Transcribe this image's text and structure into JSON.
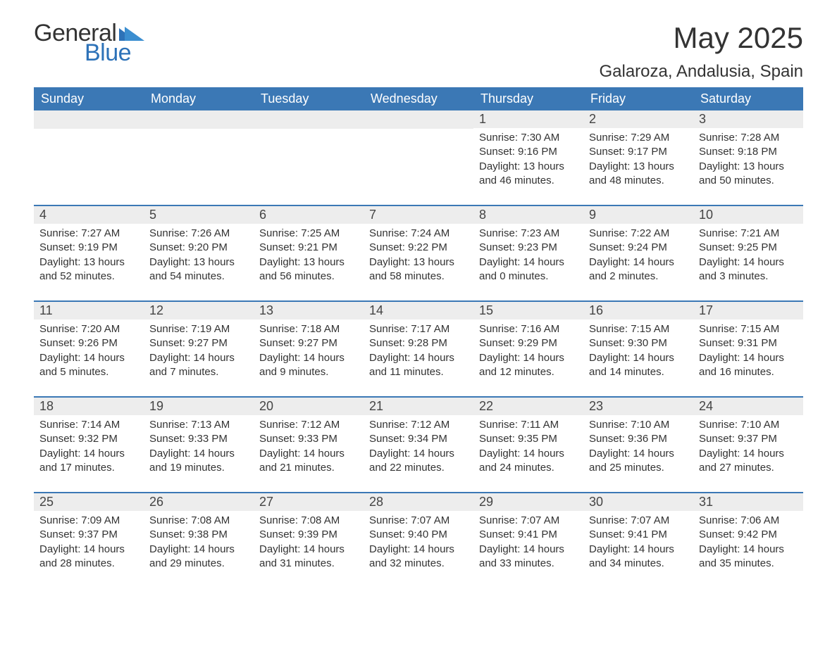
{
  "logo": {
    "text_general": "General",
    "text_blue": "Blue",
    "accent_color": "#2d72b8"
  },
  "title": "May 2025",
  "location": "Galaroza, Andalusia, Spain",
  "colors": {
    "header_bg": "#3b78b5",
    "header_text": "#ffffff",
    "daynum_bg": "#ededed",
    "body_text": "#333333",
    "rule": "#3b78b5",
    "page_bg": "#ffffff"
  },
  "typography": {
    "title_fontsize": 42,
    "location_fontsize": 24,
    "dayheader_fontsize": 18,
    "daynum_fontsize": 18,
    "detail_fontsize": 15
  },
  "day_headers": [
    "Sunday",
    "Monday",
    "Tuesday",
    "Wednesday",
    "Thursday",
    "Friday",
    "Saturday"
  ],
  "weeks": [
    [
      null,
      null,
      null,
      null,
      {
        "day": "1",
        "sunrise": "7:30 AM",
        "sunset": "9:16 PM",
        "daylight": "13 hours and 46 minutes."
      },
      {
        "day": "2",
        "sunrise": "7:29 AM",
        "sunset": "9:17 PM",
        "daylight": "13 hours and 48 minutes."
      },
      {
        "day": "3",
        "sunrise": "7:28 AM",
        "sunset": "9:18 PM",
        "daylight": "13 hours and 50 minutes."
      }
    ],
    [
      {
        "day": "4",
        "sunrise": "7:27 AM",
        "sunset": "9:19 PM",
        "daylight": "13 hours and 52 minutes."
      },
      {
        "day": "5",
        "sunrise": "7:26 AM",
        "sunset": "9:20 PM",
        "daylight": "13 hours and 54 minutes."
      },
      {
        "day": "6",
        "sunrise": "7:25 AM",
        "sunset": "9:21 PM",
        "daylight": "13 hours and 56 minutes."
      },
      {
        "day": "7",
        "sunrise": "7:24 AM",
        "sunset": "9:22 PM",
        "daylight": "13 hours and 58 minutes."
      },
      {
        "day": "8",
        "sunrise": "7:23 AM",
        "sunset": "9:23 PM",
        "daylight": "14 hours and 0 minutes."
      },
      {
        "day": "9",
        "sunrise": "7:22 AM",
        "sunset": "9:24 PM",
        "daylight": "14 hours and 2 minutes."
      },
      {
        "day": "10",
        "sunrise": "7:21 AM",
        "sunset": "9:25 PM",
        "daylight": "14 hours and 3 minutes."
      }
    ],
    [
      {
        "day": "11",
        "sunrise": "7:20 AM",
        "sunset": "9:26 PM",
        "daylight": "14 hours and 5 minutes."
      },
      {
        "day": "12",
        "sunrise": "7:19 AM",
        "sunset": "9:27 PM",
        "daylight": "14 hours and 7 minutes."
      },
      {
        "day": "13",
        "sunrise": "7:18 AM",
        "sunset": "9:27 PM",
        "daylight": "14 hours and 9 minutes."
      },
      {
        "day": "14",
        "sunrise": "7:17 AM",
        "sunset": "9:28 PM",
        "daylight": "14 hours and 11 minutes."
      },
      {
        "day": "15",
        "sunrise": "7:16 AM",
        "sunset": "9:29 PM",
        "daylight": "14 hours and 12 minutes."
      },
      {
        "day": "16",
        "sunrise": "7:15 AM",
        "sunset": "9:30 PM",
        "daylight": "14 hours and 14 minutes."
      },
      {
        "day": "17",
        "sunrise": "7:15 AM",
        "sunset": "9:31 PM",
        "daylight": "14 hours and 16 minutes."
      }
    ],
    [
      {
        "day": "18",
        "sunrise": "7:14 AM",
        "sunset": "9:32 PM",
        "daylight": "14 hours and 17 minutes."
      },
      {
        "day": "19",
        "sunrise": "7:13 AM",
        "sunset": "9:33 PM",
        "daylight": "14 hours and 19 minutes."
      },
      {
        "day": "20",
        "sunrise": "7:12 AM",
        "sunset": "9:33 PM",
        "daylight": "14 hours and 21 minutes."
      },
      {
        "day": "21",
        "sunrise": "7:12 AM",
        "sunset": "9:34 PM",
        "daylight": "14 hours and 22 minutes."
      },
      {
        "day": "22",
        "sunrise": "7:11 AM",
        "sunset": "9:35 PM",
        "daylight": "14 hours and 24 minutes."
      },
      {
        "day": "23",
        "sunrise": "7:10 AM",
        "sunset": "9:36 PM",
        "daylight": "14 hours and 25 minutes."
      },
      {
        "day": "24",
        "sunrise": "7:10 AM",
        "sunset": "9:37 PM",
        "daylight": "14 hours and 27 minutes."
      }
    ],
    [
      {
        "day": "25",
        "sunrise": "7:09 AM",
        "sunset": "9:37 PM",
        "daylight": "14 hours and 28 minutes."
      },
      {
        "day": "26",
        "sunrise": "7:08 AM",
        "sunset": "9:38 PM",
        "daylight": "14 hours and 29 minutes."
      },
      {
        "day": "27",
        "sunrise": "7:08 AM",
        "sunset": "9:39 PM",
        "daylight": "14 hours and 31 minutes."
      },
      {
        "day": "28",
        "sunrise": "7:07 AM",
        "sunset": "9:40 PM",
        "daylight": "14 hours and 32 minutes."
      },
      {
        "day": "29",
        "sunrise": "7:07 AM",
        "sunset": "9:41 PM",
        "daylight": "14 hours and 33 minutes."
      },
      {
        "day": "30",
        "sunrise": "7:07 AM",
        "sunset": "9:41 PM",
        "daylight": "14 hours and 34 minutes."
      },
      {
        "day": "31",
        "sunrise": "7:06 AM",
        "sunset": "9:42 PM",
        "daylight": "14 hours and 35 minutes."
      }
    ]
  ],
  "labels": {
    "sunrise": "Sunrise: ",
    "sunset": "Sunset: ",
    "daylight": "Daylight: "
  }
}
